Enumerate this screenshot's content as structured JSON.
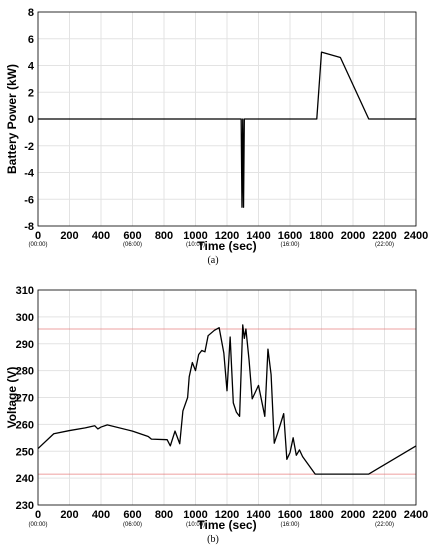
{
  "time_sublabels": [
    "(00:00)",
    "(06:00)",
    "(10:00)",
    "(16:00)",
    "(22:00)"
  ],
  "chart_data": [
    {
      "type": "line",
      "caption": "(a)",
      "xlabel": "Time (sec)",
      "ylabel": "Battery Power (kW)",
      "xlim": [
        0,
        2400
      ],
      "ylim": [
        -8,
        8
      ],
      "xticks": [
        0,
        200,
        400,
        600,
        800,
        1000,
        1200,
        1400,
        1600,
        1800,
        2000,
        2200,
        2400
      ],
      "yticks": [
        -8,
        -6,
        -4,
        -2,
        0,
        2,
        4,
        6,
        8
      ],
      "grid": true,
      "series": [
        {
          "color": "#000000",
          "x": [
            0,
            1290,
            1295,
            1300,
            1305,
            1310,
            1770,
            1800,
            1920,
            2100,
            2400
          ],
          "y": [
            0,
            0,
            -6.6,
            0,
            -6.6,
            0,
            0,
            5.0,
            4.6,
            0,
            0
          ]
        }
      ]
    },
    {
      "type": "line",
      "caption": "(b)",
      "xlabel": "Time (sec)",
      "ylabel": "Voltage (V)",
      "xlim": [
        0,
        2400
      ],
      "ylim": [
        230,
        310
      ],
      "xticks": [
        0,
        200,
        400,
        600,
        800,
        1000,
        1200,
        1400,
        1600,
        1800,
        2000,
        2200,
        2400
      ],
      "yticks": [
        230,
        240,
        250,
        260,
        270,
        280,
        290,
        300,
        310
      ],
      "grid": true,
      "reference_lines": [
        {
          "y": 295.5,
          "color": "#e88080"
        },
        {
          "y": 241.5,
          "color": "#e88080"
        }
      ],
      "series": [
        {
          "color": "#000000",
          "x": [
            0,
            100,
            200,
            300,
            360,
            380,
            400,
            440,
            600,
            700,
            720,
            820,
            840,
            870,
            900,
            920,
            950,
            960,
            980,
            1000,
            1020,
            1040,
            1060,
            1080,
            1120,
            1150,
            1180,
            1200,
            1220,
            1240,
            1260,
            1280,
            1300,
            1310,
            1320,
            1340,
            1360,
            1380,
            1400,
            1440,
            1460,
            1480,
            1500,
            1520,
            1560,
            1580,
            1600,
            1620,
            1640,
            1660,
            1680,
            1760,
            1800,
            2100,
            2400
          ],
          "y": [
            251,
            256.5,
            257.7,
            258.7,
            259.5,
            258.3,
            259,
            259.8,
            257.5,
            255.5,
            254.5,
            254.3,
            252,
            257.5,
            252.8,
            265,
            270,
            277.7,
            283,
            280,
            286,
            287.5,
            287,
            293,
            295,
            296,
            286.5,
            272.5,
            292.5,
            268,
            264.5,
            263,
            297,
            292,
            295.5,
            284,
            269.5,
            272,
            274.5,
            263,
            288,
            278.5,
            253,
            256.5,
            264,
            247,
            249.5,
            255,
            248.5,
            250.5,
            248,
            241.5,
            241.5,
            241.5,
            252
          ]
        }
      ]
    }
  ]
}
